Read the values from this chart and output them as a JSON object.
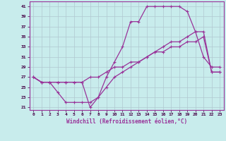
{
  "xlabel": "Windchill (Refroidissement éolien,°C)",
  "bg_color": "#c8ecec",
  "grid_color": "#b0c8d0",
  "line_color": "#993399",
  "xlim": [
    -0.5,
    23.5
  ],
  "ylim": [
    20.5,
    42
  ],
  "yticks": [
    21,
    23,
    25,
    27,
    29,
    31,
    33,
    35,
    37,
    39,
    41
  ],
  "xticks": [
    0,
    1,
    2,
    3,
    4,
    5,
    6,
    7,
    8,
    9,
    10,
    11,
    12,
    13,
    14,
    15,
    16,
    17,
    18,
    19,
    20,
    21,
    22,
    23
  ],
  "series1_x": [
    0,
    1,
    2,
    3,
    4,
    5,
    6,
    7,
    8,
    9,
    10,
    11,
    12,
    13,
    14,
    15,
    16,
    17,
    18,
    19,
    20,
    21,
    22,
    23
  ],
  "series1_y": [
    27,
    26,
    26,
    26,
    26,
    26,
    26,
    21,
    23,
    27,
    30,
    33,
    38,
    38,
    41,
    41,
    41,
    41,
    41,
    40,
    36,
    31,
    29,
    29
  ],
  "series2_x": [
    0,
    1,
    2,
    3,
    4,
    5,
    6,
    7,
    8,
    9,
    10,
    11,
    12,
    13,
    14,
    15,
    16,
    17,
    18,
    19,
    20,
    21,
    22,
    23
  ],
  "series2_y": [
    27,
    26,
    26,
    24,
    22,
    22,
    22,
    22,
    23,
    25,
    27,
    28,
    29,
    30,
    31,
    32,
    33,
    34,
    34,
    35,
    36,
    36,
    28,
    28
  ],
  "series3_x": [
    0,
    1,
    2,
    3,
    4,
    5,
    6,
    7,
    8,
    9,
    10,
    11,
    12,
    13,
    14,
    15,
    16,
    17,
    18,
    19,
    20,
    21,
    22,
    23
  ],
  "series3_y": [
    27,
    26,
    26,
    26,
    26,
    26,
    26,
    27,
    27,
    28,
    29,
    29,
    30,
    30,
    31,
    32,
    32,
    33,
    33,
    34,
    34,
    35,
    28,
    28
  ]
}
